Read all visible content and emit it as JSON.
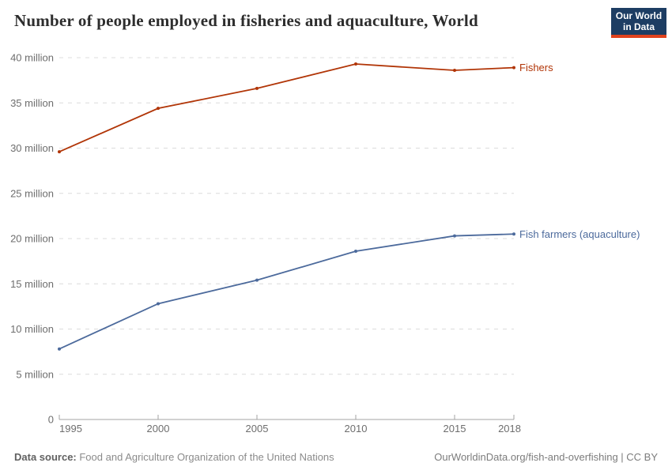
{
  "header": {
    "title": "Number of people employed in fisheries and aquaculture, World",
    "logo": {
      "line1": "Our World",
      "line2": "in Data",
      "bg": "#1d3d63",
      "accent": "#e0421d"
    }
  },
  "footer": {
    "source_label": "Data source:",
    "source_value": " Food and Agriculture Organization of the United Nations",
    "credit": "OurWorldinData.org/fish-and-overfishing | CC BY"
  },
  "chart_data": {
    "type": "line",
    "title": "Number of people employed in fisheries and aquaculture, World",
    "unit": "million people",
    "x": [
      1995,
      2000,
      2005,
      2010,
      2015,
      2018
    ],
    "x_tick_labels": [
      "1995",
      "2000",
      "2005",
      "2010",
      "2015",
      "2018"
    ],
    "xlim": [
      1995,
      2018
    ],
    "y_ticks": [
      0,
      5,
      10,
      15,
      20,
      25,
      30,
      35,
      40
    ],
    "y_tick_labels": [
      "0",
      "5 million",
      "10 million",
      "15 million",
      "20 million",
      "25 million",
      "30 million",
      "35 million",
      "40 million"
    ],
    "ylim": [
      0,
      40
    ],
    "grid": "horizontal dashed",
    "legend_position": "labels at line ends",
    "series": [
      {
        "name": "Fishers",
        "color": "#B13507",
        "values": [
          29.6,
          34.4,
          36.6,
          39.3,
          38.6,
          38.9
        ]
      },
      {
        "name": "Fish farmers (aquaculture)",
        "color": "#4C6A9C",
        "values": [
          7.8,
          12.8,
          15.4,
          18.6,
          20.3,
          20.5
        ]
      }
    ]
  }
}
